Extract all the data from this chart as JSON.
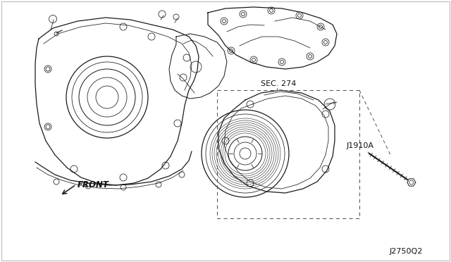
{
  "background_color": "#ffffff",
  "border_color": "#bbbbbb",
  "diagram_number": "J2750Q2",
  "part_label_1": "SEC. 274",
  "part_label_2": "J1910A",
  "front_label": "FRONT",
  "line_color": "#1a1a1a",
  "dashed_color": "#555555",
  "text_color": "#111111",
  "fig_width": 6.4,
  "fig_height": 3.72,
  "lw_main": 0.9,
  "lw_thin": 0.55,
  "lw_thick": 1.2
}
